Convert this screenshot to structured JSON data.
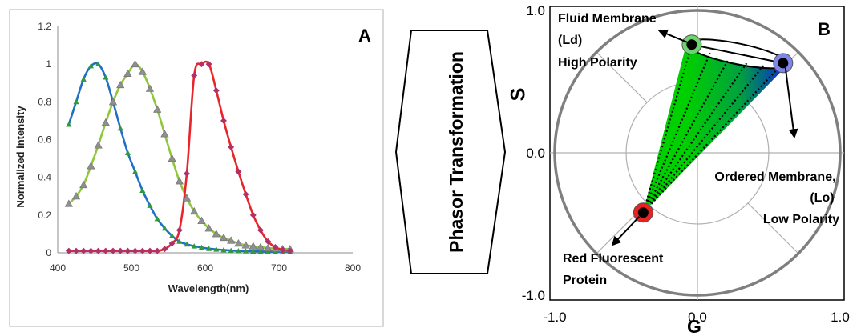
{
  "chart_data": [
    {
      "type": "line",
      "panel_label": "A",
      "xlabel": "Wavelength(nm)",
      "ylabel": "Normalized intensity",
      "xlim": [
        400,
        800
      ],
      "ylim": [
        0,
        1.2
      ],
      "x_ticks": [
        "400",
        "500",
        "600",
        "700",
        "800"
      ],
      "y_ticks": [
        "0",
        "0.2",
        "0.4",
        "0.6",
        "0.8",
        "1",
        "1.2"
      ],
      "grid": false,
      "legend": "none",
      "series": [
        {
          "color": "#1f6fc6",
          "marker_color": "#2e9a3c",
          "x": [
            415,
            425,
            435,
            445,
            455,
            465,
            475,
            485,
            495,
            505,
            515,
            525,
            535,
            545,
            555,
            565,
            575,
            585,
            595,
            605,
            615,
            625,
            635,
            645,
            655,
            665,
            675,
            685,
            695,
            705,
            715
          ],
          "values": [
            0.68,
            0.8,
            0.92,
            0.99,
            1.0,
            0.93,
            0.8,
            0.66,
            0.53,
            0.43,
            0.33,
            0.25,
            0.18,
            0.13,
            0.09,
            0.06,
            0.045,
            0.035,
            0.028,
            0.022,
            0.018,
            0.015,
            0.012,
            0.01,
            0.009,
            0.008,
            0.007,
            0.006,
            0.006,
            0.005,
            0.005
          ]
        },
        {
          "color": "#8fc63c",
          "marker_color": "#8f8f8f",
          "x": [
            415,
            425,
            435,
            445,
            455,
            465,
            475,
            485,
            495,
            505,
            515,
            525,
            535,
            545,
            555,
            565,
            575,
            585,
            595,
            605,
            615,
            625,
            635,
            645,
            655,
            665,
            675,
            685,
            695,
            705,
            715
          ],
          "values": [
            0.26,
            0.3,
            0.36,
            0.46,
            0.57,
            0.69,
            0.8,
            0.89,
            0.95,
            1.0,
            0.96,
            0.87,
            0.76,
            0.63,
            0.5,
            0.38,
            0.29,
            0.22,
            0.17,
            0.13,
            0.1,
            0.08,
            0.065,
            0.05,
            0.04,
            0.035,
            0.03,
            0.025,
            0.022,
            0.02,
            0.02
          ]
        },
        {
          "color": "#e8262a",
          "marker_color": "#b0306a",
          "x": [
            415,
            425,
            435,
            445,
            455,
            465,
            475,
            485,
            495,
            505,
            515,
            525,
            535,
            545,
            555,
            565,
            575,
            585,
            595,
            605,
            615,
            625,
            635,
            645,
            655,
            665,
            675,
            685,
            695,
            705,
            715
          ],
          "values": [
            0.01,
            0.01,
            0.01,
            0.01,
            0.01,
            0.01,
            0.01,
            0.01,
            0.01,
            0.01,
            0.01,
            0.01,
            0.01,
            0.02,
            0.05,
            0.12,
            0.42,
            0.94,
            1.0,
            1.0,
            0.86,
            0.7,
            0.56,
            0.43,
            0.31,
            0.2,
            0.12,
            0.06,
            0.03,
            0.015,
            0.01
          ]
        }
      ]
    },
    {
      "type": "scatter",
      "panel_label": "B",
      "xlabel": "G",
      "ylabel": "S",
      "xlim": [
        -1.0,
        1.0
      ],
      "ylim": [
        -1.0,
        1.0
      ],
      "x_ticks": [
        "-1.0",
        "0.0",
        "1.0"
      ],
      "y_ticks": [
        "-1.0",
        "0.0",
        "1.0"
      ],
      "points": [
        {
          "x": -0.04,
          "y": 0.76,
          "color": "#6ed36e"
        },
        {
          "x": 0.6,
          "y": 0.63,
          "color": "#7f86ea"
        },
        {
          "x": -0.38,
          "y": -0.42,
          "color": "#e82222"
        }
      ],
      "annotations": [
        {
          "lines": [
            "Fluid Membrane",
            "(Ld)",
            "High Polarity"
          ]
        },
        {
          "lines": [
            "Ordered Membrane,",
            "(Lo)",
            "Low Polarity"
          ]
        },
        {
          "lines": [
            "Red Fluorescent",
            "Protein"
          ]
        }
      ]
    }
  ],
  "transform_label": "Phasor Transformation"
}
